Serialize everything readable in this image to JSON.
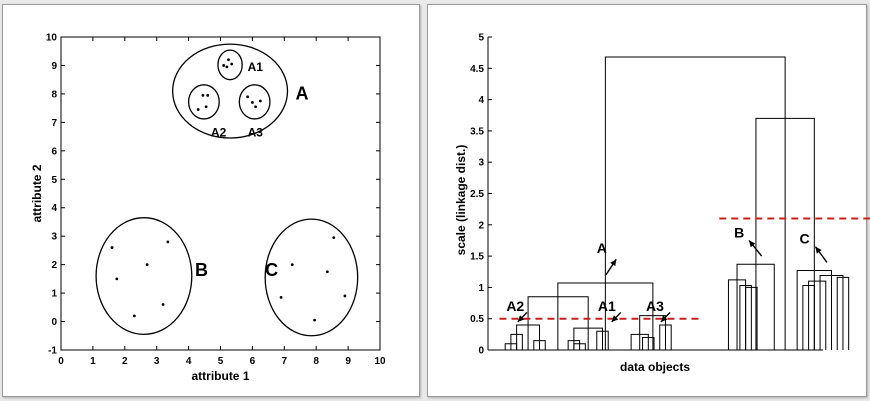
{
  "chart_data": [
    {
      "type": "scatter",
      "xlabel": "attribute 1",
      "ylabel": "attribute 2",
      "xlim": [
        0,
        10
      ],
      "ylim": [
        -1,
        10
      ],
      "xticks": [
        "0",
        "1",
        "2",
        "3",
        "4",
        "5",
        "6",
        "7",
        "8",
        "9",
        "10"
      ],
      "yticks": [
        "-1",
        "0",
        "1",
        "2",
        "3",
        "4",
        "5",
        "6",
        "7",
        "8",
        "9",
        "10"
      ],
      "points": [
        {
          "x": 5.1,
          "y": 9.0
        },
        {
          "x": 5.25,
          "y": 9.2
        },
        {
          "x": 5.35,
          "y": 9.05
        },
        {
          "x": 5.2,
          "y": 8.95
        },
        {
          "x": 4.3,
          "y": 7.45
        },
        {
          "x": 4.45,
          "y": 7.95
        },
        {
          "x": 4.55,
          "y": 7.55
        },
        {
          "x": 4.6,
          "y": 7.95
        },
        {
          "x": 5.85,
          "y": 7.9
        },
        {
          "x": 6.0,
          "y": 7.7
        },
        {
          "x": 6.1,
          "y": 7.55
        },
        {
          "x": 6.25,
          "y": 7.75
        },
        {
          "x": 1.6,
          "y": 2.6
        },
        {
          "x": 1.75,
          "y": 1.5
        },
        {
          "x": 2.7,
          "y": 2.0
        },
        {
          "x": 3.35,
          "y": 2.8
        },
        {
          "x": 2.3,
          "y": 0.2
        },
        {
          "x": 3.2,
          "y": 0.6
        },
        {
          "x": 7.25,
          "y": 2.0
        },
        {
          "x": 6.9,
          "y": 0.85
        },
        {
          "x": 8.35,
          "y": 1.75
        },
        {
          "x": 8.55,
          "y": 2.95
        },
        {
          "x": 8.9,
          "y": 0.9
        },
        {
          "x": 7.95,
          "y": 0.05
        }
      ],
      "cluster_labels": [
        {
          "text": "A1",
          "x": 5.85,
          "y": 8.8
        },
        {
          "text": "A2",
          "x": 4.7,
          "y": 6.5
        },
        {
          "text": "A3",
          "x": 5.85,
          "y": 6.5
        },
        {
          "text": "A",
          "x": 7.35,
          "y": 7.8
        },
        {
          "text": "B",
          "x": 4.2,
          "y": 1.6
        },
        {
          "text": "C",
          "x": 6.4,
          "y": 1.6
        }
      ],
      "ellipses": [
        {
          "cx": 5.3,
          "cy": 8.1,
          "rx": 1.8,
          "ry": 1.65
        },
        {
          "cx": 5.3,
          "cy": 9.02,
          "rx": 0.38,
          "ry": 0.52
        },
        {
          "cx": 4.48,
          "cy": 7.72,
          "rx": 0.48,
          "ry": 0.6
        },
        {
          "cx": 6.07,
          "cy": 7.72,
          "rx": 0.48,
          "ry": 0.6
        },
        {
          "cx": 2.6,
          "cy": 1.6,
          "rx": 1.5,
          "ry": 2.05
        },
        {
          "cx": 7.85,
          "cy": 1.55,
          "rx": 1.45,
          "ry": 2.05
        }
      ]
    },
    {
      "type": "dendrogram",
      "xlabel": "data objects",
      "ylabel": "scale (linkage dist.)",
      "ylim": [
        0,
        5
      ],
      "yticks": [
        "0",
        "0.5",
        "1",
        "1.5",
        "2",
        "2.5",
        "3",
        "3.5",
        "4",
        "4.5",
        "5"
      ],
      "cut_lines": [
        {
          "y": 0.5,
          "x_from": 1,
          "x_to": 18.6
        },
        {
          "y": 2.1,
          "x_from": 20.2,
          "x_to": 33.7
        }
      ],
      "merges": [
        {
          "x1": 1.5,
          "x2": 2.5,
          "h": 0.1
        },
        {
          "x1": 4,
          "x2": 5,
          "h": 0.15
        },
        {
          "x1": 2,
          "x2": 3,
          "h": 0.25
        },
        {
          "x1": 2.5,
          "x2": 4.5,
          "h": 0.4
        },
        {
          "x1": 7.5,
          "x2": 8.5,
          "h": 0.1
        },
        {
          "x1": 7,
          "x2": 8,
          "h": 0.15
        },
        {
          "x1": 9.5,
          "x2": 10.5,
          "h": 0.3
        },
        {
          "x1": 7.5,
          "x2": 10,
          "h": 0.35
        },
        {
          "x1": 13.5,
          "x2": 14.5,
          "h": 0.2
        },
        {
          "x1": 12.5,
          "x2": 14,
          "h": 0.25
        },
        {
          "x1": 15,
          "x2": 16,
          "h": 0.4
        },
        {
          "x1": 13.25,
          "x2": 15.5,
          "h": 0.55
        },
        {
          "x1": 3.5,
          "x2": 8.75,
          "h": 0.85
        },
        {
          "x1": 6.1,
          "x2": 14.4,
          "h": 1.07
        },
        {
          "x1": 22.5,
          "x2": 23.5,
          "h": 1.0
        },
        {
          "x1": 22,
          "x2": 23,
          "h": 1.03
        },
        {
          "x1": 21,
          "x2": 22.5,
          "h": 1.12
        },
        {
          "x1": 21.75,
          "x2": 25,
          "h": 1.37
        },
        {
          "x1": 27.5,
          "x2": 28.5,
          "h": 1.03
        },
        {
          "x1": 28,
          "x2": 29.5,
          "h": 1.1
        },
        {
          "x1": 30.5,
          "x2": 31.5,
          "h": 1.16
        },
        {
          "x1": 29,
          "x2": 31,
          "h": 1.19
        },
        {
          "x1": 27,
          "x2": 30,
          "h": 1.27
        },
        {
          "x1": 23.4,
          "x2": 28.5,
          "h": 3.7
        },
        {
          "x1": 10.25,
          "x2": 25.95,
          "h": 4.68
        }
      ],
      "annotations": [
        {
          "text": "A",
          "x": 9.5,
          "y": 1.55
        },
        {
          "text": "A1",
          "x": 9.6,
          "y": 0.62
        },
        {
          "text": "A2",
          "x": 1.6,
          "y": 0.62
        },
        {
          "text": "A3",
          "x": 13.8,
          "y": 0.62
        },
        {
          "text": "B",
          "x": 21.5,
          "y": 1.8
        },
        {
          "text": "C",
          "x": 27.2,
          "y": 1.7
        }
      ],
      "arrows": [
        {
          "x1": 10.3,
          "y1": 1.2,
          "x2": 11.2,
          "y2": 1.45
        },
        {
          "x1": 11.6,
          "y1": 0.6,
          "x2": 10.8,
          "y2": 0.45
        },
        {
          "x1": 3.4,
          "y1": 0.6,
          "x2": 2.6,
          "y2": 0.45
        },
        {
          "x1": 15.9,
          "y1": 0.6,
          "x2": 15.1,
          "y2": 0.45
        },
        {
          "x1": 23.9,
          "y1": 1.5,
          "x2": 22.8,
          "y2": 1.75
        },
        {
          "x1": 29.6,
          "y1": 1.4,
          "x2": 28.6,
          "y2": 1.65
        }
      ]
    }
  ]
}
